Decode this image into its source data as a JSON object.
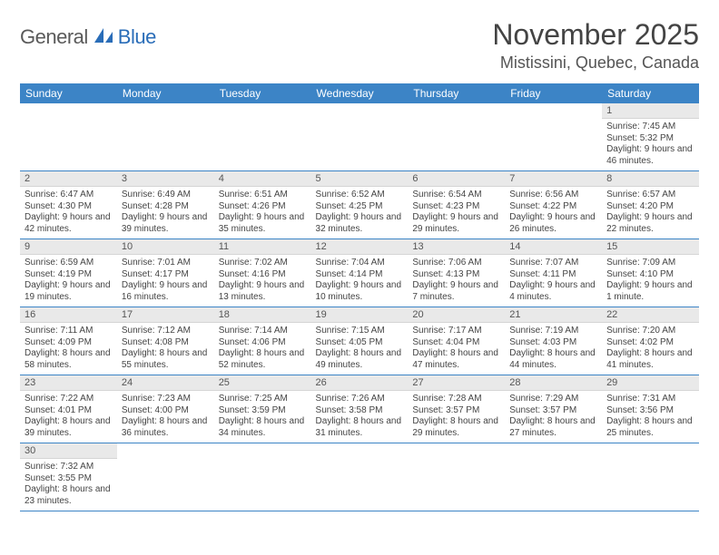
{
  "logo": {
    "part1": "General",
    "part2": "Blue"
  },
  "title": "November 2025",
  "location": "Mistissini, Quebec, Canada",
  "colors": {
    "header_bg": "#3c84c6",
    "header_text": "#ffffff",
    "daynum_bg": "#e9e9e9",
    "border": "#3c84c6",
    "logo_gray": "#5a5a5a",
    "logo_blue": "#2a6db8"
  },
  "day_names": [
    "Sunday",
    "Monday",
    "Tuesday",
    "Wednesday",
    "Thursday",
    "Friday",
    "Saturday"
  ],
  "weeks": [
    [
      null,
      null,
      null,
      null,
      null,
      null,
      {
        "n": "1",
        "sr": "7:45 AM",
        "ss": "5:32 PM",
        "dl": "9 hours and 46 minutes."
      }
    ],
    [
      {
        "n": "2",
        "sr": "6:47 AM",
        "ss": "4:30 PM",
        "dl": "9 hours and 42 minutes."
      },
      {
        "n": "3",
        "sr": "6:49 AM",
        "ss": "4:28 PM",
        "dl": "9 hours and 39 minutes."
      },
      {
        "n": "4",
        "sr": "6:51 AM",
        "ss": "4:26 PM",
        "dl": "9 hours and 35 minutes."
      },
      {
        "n": "5",
        "sr": "6:52 AM",
        "ss": "4:25 PM",
        "dl": "9 hours and 32 minutes."
      },
      {
        "n": "6",
        "sr": "6:54 AM",
        "ss": "4:23 PM",
        "dl": "9 hours and 29 minutes."
      },
      {
        "n": "7",
        "sr": "6:56 AM",
        "ss": "4:22 PM",
        "dl": "9 hours and 26 minutes."
      },
      {
        "n": "8",
        "sr": "6:57 AM",
        "ss": "4:20 PM",
        "dl": "9 hours and 22 minutes."
      }
    ],
    [
      {
        "n": "9",
        "sr": "6:59 AM",
        "ss": "4:19 PM",
        "dl": "9 hours and 19 minutes."
      },
      {
        "n": "10",
        "sr": "7:01 AM",
        "ss": "4:17 PM",
        "dl": "9 hours and 16 minutes."
      },
      {
        "n": "11",
        "sr": "7:02 AM",
        "ss": "4:16 PM",
        "dl": "9 hours and 13 minutes."
      },
      {
        "n": "12",
        "sr": "7:04 AM",
        "ss": "4:14 PM",
        "dl": "9 hours and 10 minutes."
      },
      {
        "n": "13",
        "sr": "7:06 AM",
        "ss": "4:13 PM",
        "dl": "9 hours and 7 minutes."
      },
      {
        "n": "14",
        "sr": "7:07 AM",
        "ss": "4:11 PM",
        "dl": "9 hours and 4 minutes."
      },
      {
        "n": "15",
        "sr": "7:09 AM",
        "ss": "4:10 PM",
        "dl": "9 hours and 1 minute."
      }
    ],
    [
      {
        "n": "16",
        "sr": "7:11 AM",
        "ss": "4:09 PM",
        "dl": "8 hours and 58 minutes."
      },
      {
        "n": "17",
        "sr": "7:12 AM",
        "ss": "4:08 PM",
        "dl": "8 hours and 55 minutes."
      },
      {
        "n": "18",
        "sr": "7:14 AM",
        "ss": "4:06 PM",
        "dl": "8 hours and 52 minutes."
      },
      {
        "n": "19",
        "sr": "7:15 AM",
        "ss": "4:05 PM",
        "dl": "8 hours and 49 minutes."
      },
      {
        "n": "20",
        "sr": "7:17 AM",
        "ss": "4:04 PM",
        "dl": "8 hours and 47 minutes."
      },
      {
        "n": "21",
        "sr": "7:19 AM",
        "ss": "4:03 PM",
        "dl": "8 hours and 44 minutes."
      },
      {
        "n": "22",
        "sr": "7:20 AM",
        "ss": "4:02 PM",
        "dl": "8 hours and 41 minutes."
      }
    ],
    [
      {
        "n": "23",
        "sr": "7:22 AM",
        "ss": "4:01 PM",
        "dl": "8 hours and 39 minutes."
      },
      {
        "n": "24",
        "sr": "7:23 AM",
        "ss": "4:00 PM",
        "dl": "8 hours and 36 minutes."
      },
      {
        "n": "25",
        "sr": "7:25 AM",
        "ss": "3:59 PM",
        "dl": "8 hours and 34 minutes."
      },
      {
        "n": "26",
        "sr": "7:26 AM",
        "ss": "3:58 PM",
        "dl": "8 hours and 31 minutes."
      },
      {
        "n": "27",
        "sr": "7:28 AM",
        "ss": "3:57 PM",
        "dl": "8 hours and 29 minutes."
      },
      {
        "n": "28",
        "sr": "7:29 AM",
        "ss": "3:57 PM",
        "dl": "8 hours and 27 minutes."
      },
      {
        "n": "29",
        "sr": "7:31 AM",
        "ss": "3:56 PM",
        "dl": "8 hours and 25 minutes."
      }
    ],
    [
      {
        "n": "30",
        "sr": "7:32 AM",
        "ss": "3:55 PM",
        "dl": "8 hours and 23 minutes."
      },
      null,
      null,
      null,
      null,
      null,
      null
    ]
  ],
  "labels": {
    "sunrise": "Sunrise:",
    "sunset": "Sunset:",
    "daylight": "Daylight:"
  }
}
